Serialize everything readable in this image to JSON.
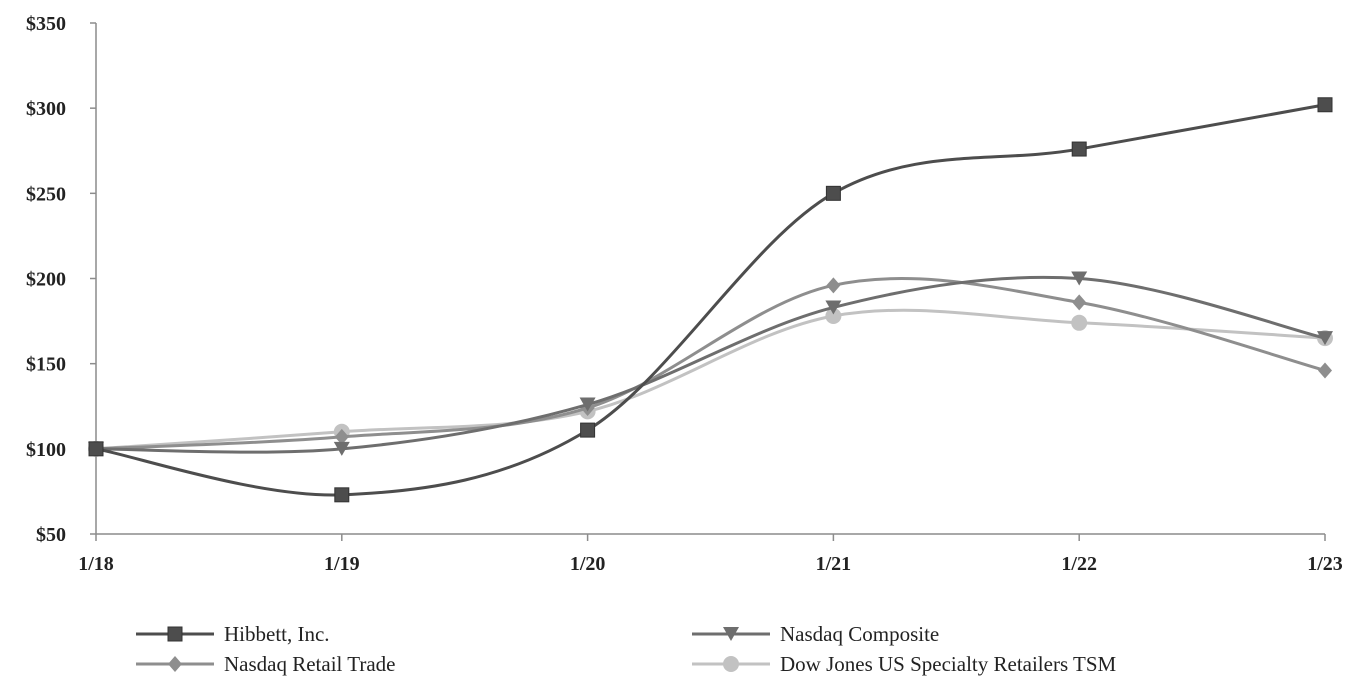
{
  "chart_data": {
    "type": "line",
    "title": "",
    "xlabel": "",
    "ylabel": "",
    "categories": [
      "1/18",
      "1/19",
      "1/20",
      "1/21",
      "1/22",
      "1/23"
    ],
    "y_tick_labels": [
      "$50",
      "$100",
      "$150",
      "$200",
      "$250",
      "$300",
      "$350"
    ],
    "y_ticks": [
      50,
      100,
      150,
      200,
      250,
      300,
      350
    ],
    "ylim": [
      50,
      350
    ],
    "grid": false,
    "legend_position": "bottom",
    "series": [
      {
        "name": "Hibbett, Inc.",
        "marker": "square",
        "color": "#4d4d4d",
        "values": [
          100,
          73,
          111,
          250,
          276,
          302
        ]
      },
      {
        "name": "Nasdaq Composite",
        "marker": "triangle-down",
        "color": "#6e6e6e",
        "values": [
          100,
          100,
          126,
          183,
          200,
          165
        ]
      },
      {
        "name": "Nasdaq Retail Trade",
        "marker": "diamond",
        "color": "#8e8e8e",
        "values": [
          100,
          107,
          124,
          196,
          186,
          146
        ]
      },
      {
        "name": "Dow Jones US Specialty Retailers TSM",
        "marker": "circle",
        "color": "#c2c2c2",
        "values": [
          100,
          110,
          122,
          178,
          174,
          165
        ]
      }
    ]
  }
}
